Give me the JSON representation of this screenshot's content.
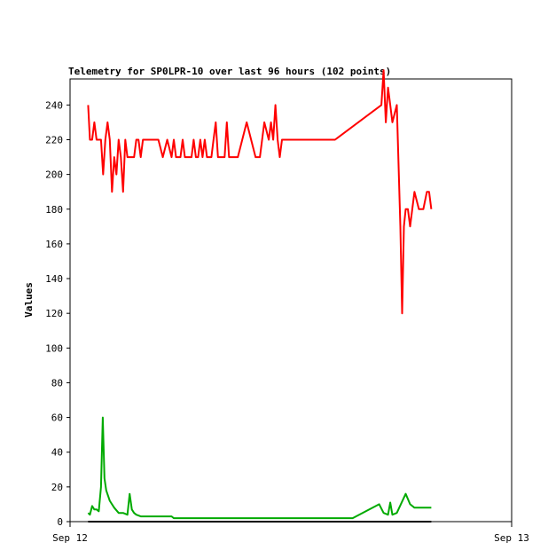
{
  "chart_data": {
    "type": "line",
    "title": "Telemetry for SP0LPR-10 over last 96 hours (102 points)",
    "ylabel": "Values",
    "xlabel": "",
    "ylim": [
      0,
      255
    ],
    "y_ticks": [
      0,
      20,
      40,
      60,
      80,
      100,
      120,
      140,
      160,
      180,
      200,
      220,
      240
    ],
    "x_tick_labels": [
      {
        "label": "Sep 12",
        "x": 0.0
      },
      {
        "label": "Sep 13",
        "x": 1.0
      }
    ],
    "xlim": [
      0.0,
      1.0
    ],
    "grid": false,
    "series": [
      {
        "color": "#ff0000",
        "x": [
          0.041,
          0.045,
          0.05,
          0.055,
          0.06,
          0.065,
          0.07,
          0.075,
          0.08,
          0.085,
          0.09,
          0.095,
          0.1,
          0.105,
          0.11,
          0.115,
          0.12,
          0.125,
          0.13,
          0.135,
          0.14,
          0.145,
          0.15,
          0.155,
          0.16,
          0.165,
          0.17,
          0.175,
          0.18,
          0.185,
          0.19,
          0.195,
          0.2,
          0.21,
          0.22,
          0.23,
          0.235,
          0.24,
          0.245,
          0.25,
          0.255,
          0.26,
          0.265,
          0.27,
          0.275,
          0.28,
          0.285,
          0.29,
          0.295,
          0.3,
          0.305,
          0.31,
          0.315,
          0.32,
          0.325,
          0.33,
          0.335,
          0.34,
          0.345,
          0.35,
          0.355,
          0.36,
          0.37,
          0.38,
          0.39,
          0.4,
          0.41,
          0.42,
          0.43,
          0.44,
          0.45,
          0.455,
          0.46,
          0.465,
          0.47,
          0.475,
          0.48,
          0.49,
          0.5,
          0.51,
          0.52,
          0.53,
          0.54,
          0.55,
          0.56,
          0.57,
          0.58,
          0.59,
          0.6,
          0.705,
          0.71,
          0.715,
          0.72,
          0.725,
          0.73,
          0.74,
          0.748,
          0.752,
          0.756,
          0.76,
          0.765,
          0.77,
          0.78,
          0.79,
          0.8,
          0.808,
          0.813,
          0.818
        ],
        "values": [
          240,
          220,
          220,
          230,
          220,
          220,
          220,
          200,
          220,
          230,
          220,
          190,
          210,
          200,
          220,
          210,
          190,
          220,
          210,
          210,
          210,
          210,
          220,
          220,
          210,
          220,
          220,
          220,
          220,
          220,
          220,
          220,
          220,
          210,
          220,
          210,
          220,
          210,
          210,
          210,
          220,
          210,
          210,
          210,
          210,
          220,
          210,
          210,
          220,
          210,
          220,
          210,
          210,
          210,
          220,
          230,
          210,
          210,
          210,
          210,
          230,
          210,
          210,
          210,
          220,
          230,
          220,
          210,
          210,
          230,
          220,
          230,
          220,
          240,
          220,
          210,
          220,
          220,
          220,
          220,
          220,
          220,
          220,
          220,
          220,
          220,
          220,
          220,
          220,
          240,
          260,
          230,
          250,
          240,
          230,
          240,
          170,
          120,
          170,
          180,
          180,
          170,
          190,
          180,
          180,
          190,
          190,
          180
        ]
      },
      {
        "color": "#00aa00",
        "x": [
          0.041,
          0.045,
          0.05,
          0.055,
          0.06,
          0.065,
          0.07,
          0.074,
          0.078,
          0.082,
          0.09,
          0.1,
          0.11,
          0.12,
          0.13,
          0.135,
          0.14,
          0.145,
          0.15,
          0.16,
          0.18,
          0.2,
          0.23,
          0.235,
          0.26,
          0.3,
          0.35,
          0.4,
          0.45,
          0.5,
          0.55,
          0.6,
          0.64,
          0.7,
          0.71,
          0.72,
          0.725,
          0.73,
          0.74,
          0.76,
          0.77,
          0.78,
          0.8,
          0.818
        ],
        "values": [
          5,
          4,
          9,
          7,
          7,
          6,
          20,
          60,
          25,
          18,
          12,
          8,
          5,
          5,
          4,
          16,
          7,
          5,
          4,
          3,
          3,
          3,
          3,
          2,
          2,
          2,
          2,
          2,
          2,
          2,
          2,
          2,
          2,
          10,
          5,
          4,
          11,
          4,
          5,
          16,
          10,
          8,
          8,
          8
        ]
      },
      {
        "color": "#000000",
        "x": [
          0.041,
          0.818
        ],
        "values": [
          0,
          0
        ]
      }
    ]
  }
}
